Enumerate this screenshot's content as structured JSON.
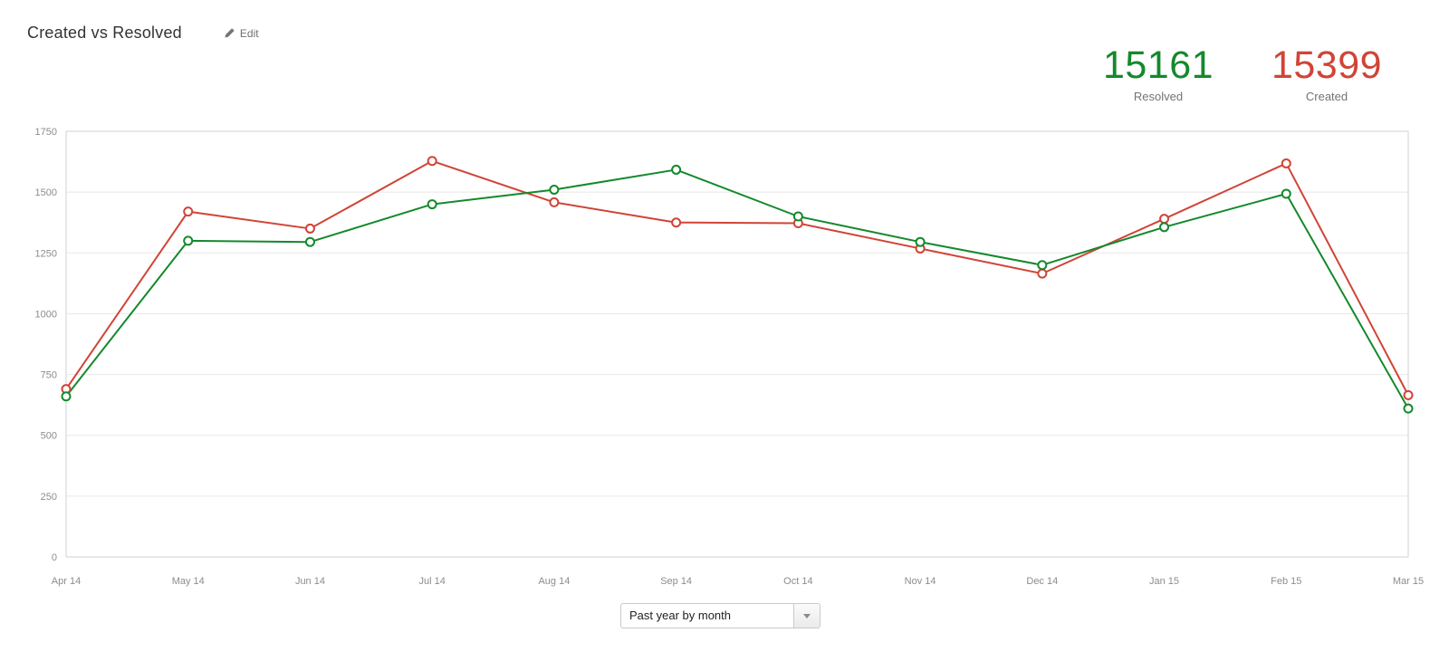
{
  "header": {
    "title": "Created vs Resolved",
    "edit_label": "Edit"
  },
  "summary": {
    "resolved": {
      "value": "15161",
      "label": "Resolved",
      "color": "#14892c"
    },
    "created": {
      "value": "15399",
      "label": "Created",
      "color": "#d04437"
    }
  },
  "controls": {
    "period_select": {
      "value": "Past year by month"
    }
  },
  "chart_data": {
    "type": "line",
    "title": "Created vs Resolved",
    "categories": [
      "Apr 14",
      "May 14",
      "Jun 14",
      "Jul 14",
      "Aug 14",
      "Sep 14",
      "Oct 14",
      "Nov 14",
      "Dec 14",
      "Jan 15",
      "Feb 15",
      "Mar 15"
    ],
    "series": [
      {
        "name": "Created",
        "color": "#d04437",
        "total": 15399,
        "values": [
          690,
          1420,
          1350,
          1628,
          1458,
          1375,
          1372,
          1268,
          1165,
          1390,
          1618,
          665
        ]
      },
      {
        "name": "Resolved",
        "color": "#14892c",
        "total": 15161,
        "values": [
          660,
          1300,
          1295,
          1450,
          1510,
          1592,
          1400,
          1295,
          1200,
          1356,
          1493,
          610
        ]
      }
    ],
    "xlabel": "",
    "ylabel": "",
    "ylim": [
      0,
      1750
    ],
    "yticks": [
      0,
      250,
      500,
      750,
      1000,
      1250,
      1500,
      1750
    ],
    "grid": true,
    "legend": "none",
    "marker": "open-circle"
  }
}
